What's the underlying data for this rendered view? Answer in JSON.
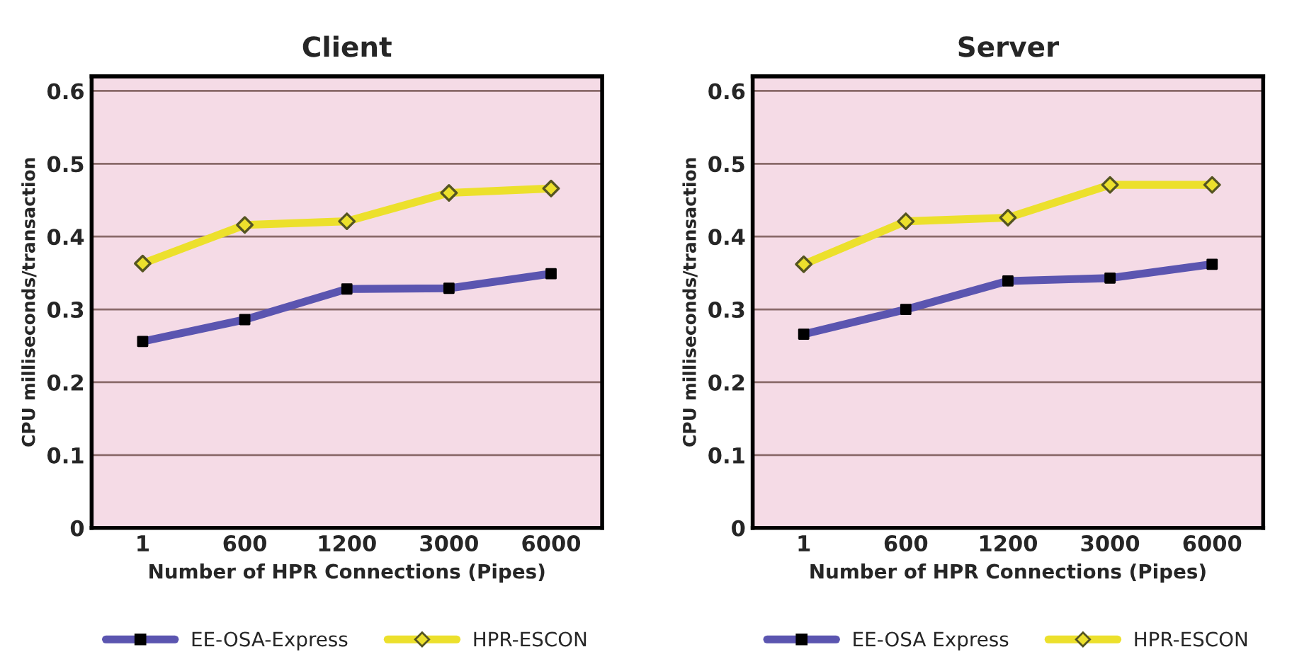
{
  "chart_data": [
    {
      "type": "line",
      "title": "Client",
      "xlabel": "Number of HPR Connections (Pipes)",
      "ylabel": "CPU milliseconds/transaction",
      "categories": [
        "1",
        "600",
        "1200",
        "3000",
        "6000"
      ],
      "ylim": [
        0,
        0.62
      ],
      "yticks": [
        0,
        0.1,
        0.2,
        0.3,
        0.4,
        0.5,
        0.6
      ],
      "grid": "y",
      "legend": "bottom",
      "series": [
        {
          "name": "EE-OSA-Express",
          "color": "#5b55b0",
          "marker": "square",
          "values": [
            0.256,
            0.286,
            0.328,
            0.329,
            0.349
          ]
        },
        {
          "name": "HPR-ESCON",
          "color": "#ece02c",
          "marker": "diamond",
          "values": [
            0.363,
            0.416,
            0.421,
            0.46,
            0.466
          ]
        }
      ]
    },
    {
      "type": "line",
      "title": "Server",
      "xlabel": "Number of HPR Connections (Pipes)",
      "ylabel": "CPU milliseconds/transaction",
      "categories": [
        "1",
        "600",
        "1200",
        "3000",
        "6000"
      ],
      "ylim": [
        0,
        0.62
      ],
      "yticks": [
        0,
        0.1,
        0.2,
        0.3,
        0.4,
        0.5,
        0.6
      ],
      "grid": "y",
      "legend": "bottom",
      "series": [
        {
          "name": "EE-OSA Express",
          "color": "#5b55b0",
          "marker": "square",
          "values": [
            0.266,
            0.3,
            0.339,
            0.343,
            0.362
          ]
        },
        {
          "name": "HPR-ESCON",
          "color": "#ece02c",
          "marker": "diamond",
          "values": [
            0.362,
            0.421,
            0.426,
            0.471,
            0.471
          ]
        }
      ]
    }
  ]
}
